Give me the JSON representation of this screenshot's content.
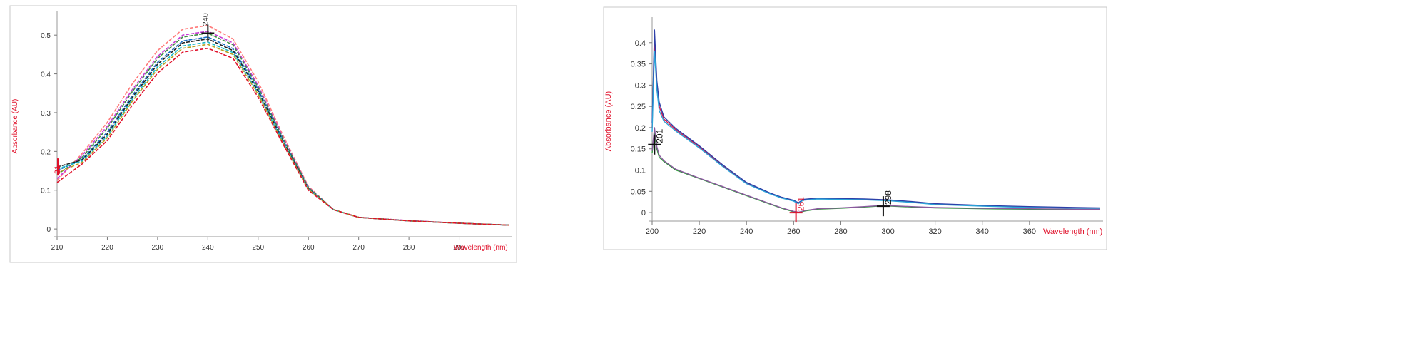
{
  "chart_data": [
    {
      "type": "line",
      "title": "",
      "xlabel": "Wavelength (nm)",
      "ylabel": "Absorbance (AU)",
      "xlim": [
        210,
        300
      ],
      "ylim": [
        -0.02,
        0.55
      ],
      "x_ticks": [
        "210",
        "220",
        "230",
        "240",
        "250",
        "260",
        "270",
        "280",
        "290"
      ],
      "y_ticks": [
        "0",
        "0.1",
        "0.2",
        "0.3",
        "0.4",
        "0.5"
      ],
      "grid": false,
      "peak_label": "240",
      "start_label": "21",
      "series": [
        {
          "color": "#ff7b7b",
          "points": [
            [
              210,
              0.125
            ],
            [
              215,
              0.195
            ],
            [
              220,
              0.275
            ],
            [
              225,
              0.375
            ],
            [
              230,
              0.46
            ],
            [
              235,
              0.515
            ],
            [
              240,
              0.525
            ],
            [
              245,
              0.49
            ],
            [
              250,
              0.38
            ],
            [
              255,
              0.24
            ],
            [
              260,
              0.11
            ],
            [
              265,
              0.05
            ],
            [
              270,
              0.03
            ],
            [
              280,
              0.022
            ],
            [
              290,
              0.015
            ],
            [
              300,
              0.01
            ]
          ]
        },
        {
          "color": "#c73ad6",
          "points": [
            [
              210,
              0.13
            ],
            [
              215,
              0.19
            ],
            [
              220,
              0.265
            ],
            [
              225,
              0.36
            ],
            [
              230,
              0.445
            ],
            [
              235,
              0.5
            ],
            [
              240,
              0.51
            ],
            [
              245,
              0.48
            ],
            [
              250,
              0.37
            ],
            [
              255,
              0.235
            ],
            [
              260,
              0.108
            ],
            [
              265,
              0.05
            ],
            [
              270,
              0.03
            ],
            [
              280,
              0.022
            ],
            [
              290,
              0.015
            ],
            [
              300,
              0.01
            ]
          ]
        },
        {
          "color": "#3e8e41",
          "points": [
            [
              210,
              0.14
            ],
            [
              215,
              0.185
            ],
            [
              220,
              0.26
            ],
            [
              225,
              0.355
            ],
            [
              230,
              0.44
            ],
            [
              235,
              0.495
            ],
            [
              240,
              0.505
            ],
            [
              245,
              0.475
            ],
            [
              250,
              0.365
            ],
            [
              255,
              0.232
            ],
            [
              260,
              0.107
            ],
            [
              265,
              0.05
            ],
            [
              270,
              0.03
            ],
            [
              280,
              0.021
            ],
            [
              290,
              0.015
            ],
            [
              300,
              0.01
            ]
          ]
        },
        {
          "color": "#1a6fc4",
          "points": [
            [
              210,
              0.15
            ],
            [
              215,
              0.18
            ],
            [
              220,
              0.25
            ],
            [
              225,
              0.345
            ],
            [
              230,
              0.43
            ],
            [
              235,
              0.485
            ],
            [
              240,
              0.495
            ],
            [
              245,
              0.465
            ],
            [
              250,
              0.36
            ],
            [
              255,
              0.228
            ],
            [
              260,
              0.105
            ],
            [
              265,
              0.05
            ],
            [
              270,
              0.03
            ],
            [
              280,
              0.021
            ],
            [
              290,
              0.015
            ],
            [
              300,
              0.01
            ]
          ]
        },
        {
          "color": "#222222",
          "points": [
            [
              210,
              0.16
            ],
            [
              215,
              0.178
            ],
            [
              220,
              0.245
            ],
            [
              225,
              0.34
            ],
            [
              230,
              0.425
            ],
            [
              235,
              0.48
            ],
            [
              240,
              0.49
            ],
            [
              245,
              0.46
            ],
            [
              250,
              0.355
            ],
            [
              255,
              0.225
            ],
            [
              260,
              0.104
            ],
            [
              265,
              0.05
            ],
            [
              270,
              0.03
            ],
            [
              280,
              0.021
            ],
            [
              290,
              0.015
            ],
            [
              300,
              0.01
            ]
          ]
        },
        {
          "color": "#19b8c8",
          "points": [
            [
              210,
              0.155
            ],
            [
              215,
              0.175
            ],
            [
              220,
              0.24
            ],
            [
              225,
              0.335
            ],
            [
              230,
              0.418
            ],
            [
              235,
              0.472
            ],
            [
              240,
              0.482
            ],
            [
              245,
              0.455
            ],
            [
              250,
              0.35
            ],
            [
              255,
              0.222
            ],
            [
              260,
              0.103
            ],
            [
              265,
              0.05
            ],
            [
              270,
              0.03
            ],
            [
              280,
              0.021
            ],
            [
              290,
              0.015
            ],
            [
              300,
              0.01
            ]
          ]
        },
        {
          "color": "#b8a020",
          "points": [
            [
              210,
              0.145
            ],
            [
              215,
              0.172
            ],
            [
              220,
              0.235
            ],
            [
              225,
              0.33
            ],
            [
              230,
              0.412
            ],
            [
              235,
              0.466
            ],
            [
              240,
              0.476
            ],
            [
              245,
              0.45
            ],
            [
              250,
              0.347
            ],
            [
              255,
              0.22
            ],
            [
              260,
              0.102
            ],
            [
              265,
              0.05
            ],
            [
              270,
              0.03
            ],
            [
              280,
              0.021
            ],
            [
              290,
              0.015
            ],
            [
              300,
              0.01
            ]
          ]
        },
        {
          "color": "#e0102a",
          "points": [
            [
              210,
              0.12
            ],
            [
              215,
              0.168
            ],
            [
              220,
              0.228
            ],
            [
              225,
              0.32
            ],
            [
              230,
              0.402
            ],
            [
              235,
              0.456
            ],
            [
              240,
              0.466
            ],
            [
              245,
              0.44
            ],
            [
              250,
              0.34
            ],
            [
              255,
              0.218
            ],
            [
              260,
              0.1
            ],
            [
              265,
              0.05
            ],
            [
              270,
              0.03
            ],
            [
              280,
              0.021
            ],
            [
              290,
              0.015
            ],
            [
              300,
              0.01
            ]
          ]
        }
      ]
    },
    {
      "type": "line",
      "title": "",
      "xlabel": "Wavelength (nm)",
      "ylabel": "Absorbance (AU)",
      "xlim": [
        200,
        390
      ],
      "ylim": [
        -0.02,
        0.45
      ],
      "x_ticks": [
        "200",
        "220",
        "240",
        "260",
        "280",
        "300",
        "320",
        "340",
        "360"
      ],
      "y_ticks": [
        "0",
        "0.05",
        "0.1",
        "0.15",
        "0.2",
        "0.25",
        "0.3",
        "0.35",
        "0.4"
      ],
      "grid": false,
      "markers": [
        {
          "x": 201,
          "y": 0.16,
          "label": "201",
          "color": "#111111"
        },
        {
          "x": 261,
          "y": 0.0,
          "label": "261",
          "color": "#e0102a"
        },
        {
          "x": 298,
          "y": 0.015,
          "label": "298",
          "color": "#111111"
        }
      ],
      "series": [
        {
          "color": "#d81b4c",
          "points": [
            [
              200,
              0.2
            ],
            [
              201,
              0.4
            ],
            [
              202,
              0.3
            ],
            [
              203,
              0.25
            ],
            [
              205,
              0.22
            ],
            [
              210,
              0.195
            ],
            [
              220,
              0.155
            ],
            [
              230,
              0.11
            ],
            [
              240,
              0.07
            ],
            [
              250,
              0.045
            ],
            [
              255,
              0.035
            ],
            [
              260,
              0.028
            ],
            [
              262,
              0.022
            ],
            [
              264,
              0.03
            ],
            [
              270,
              0.033
            ],
            [
              280,
              0.032
            ],
            [
              290,
              0.031
            ],
            [
              300,
              0.029
            ],
            [
              310,
              0.025
            ],
            [
              320,
              0.02
            ],
            [
              340,
              0.016
            ],
            [
              360,
              0.013
            ],
            [
              380,
              0.011
            ],
            [
              390,
              0.01
            ]
          ]
        },
        {
          "color": "#2d3fa8",
          "points": [
            [
              200,
              0.21
            ],
            [
              201,
              0.43
            ],
            [
              202,
              0.31
            ],
            [
              203,
              0.26
            ],
            [
              205,
              0.225
            ],
            [
              210,
              0.198
            ],
            [
              220,
              0.157
            ],
            [
              230,
              0.112
            ],
            [
              240,
              0.071
            ],
            [
              250,
              0.046
            ],
            [
              255,
              0.036
            ],
            [
              260,
              0.029
            ],
            [
              262,
              0.023
            ],
            [
              264,
              0.031
            ],
            [
              270,
              0.034
            ],
            [
              280,
              0.033
            ],
            [
              290,
              0.032
            ],
            [
              300,
              0.03
            ],
            [
              310,
              0.026
            ],
            [
              320,
              0.021
            ],
            [
              340,
              0.017
            ],
            [
              360,
              0.014
            ],
            [
              380,
              0.012
            ],
            [
              390,
              0.011
            ]
          ]
        },
        {
          "color": "#2aa3d8",
          "points": [
            [
              200,
              0.19
            ],
            [
              201,
              0.38
            ],
            [
              202,
              0.29
            ],
            [
              203,
              0.24
            ],
            [
              205,
              0.215
            ],
            [
              210,
              0.192
            ],
            [
              220,
              0.152
            ],
            [
              230,
              0.108
            ],
            [
              240,
              0.068
            ],
            [
              250,
              0.044
            ],
            [
              255,
              0.034
            ],
            [
              260,
              0.027
            ],
            [
              262,
              0.021
            ],
            [
              264,
              0.029
            ],
            [
              270,
              0.032
            ],
            [
              280,
              0.031
            ],
            [
              290,
              0.03
            ],
            [
              300,
              0.028
            ],
            [
              310,
              0.024
            ],
            [
              320,
              0.019
            ],
            [
              340,
              0.015
            ],
            [
              360,
              0.012
            ],
            [
              380,
              0.01
            ],
            [
              390,
              0.009
            ]
          ]
        },
        {
          "color": "#2e9a3a",
          "points": [
            [
              200,
              0.14
            ],
            [
              201,
              0.19
            ],
            [
              202,
              0.15
            ],
            [
              203,
              0.13
            ],
            [
              205,
              0.12
            ],
            [
              210,
              0.1
            ],
            [
              220,
              0.08
            ],
            [
              230,
              0.06
            ],
            [
              240,
              0.04
            ],
            [
              250,
              0.02
            ],
            [
              255,
              0.01
            ],
            [
              260,
              0.002
            ],
            [
              262,
              0.0
            ],
            [
              265,
              0.004
            ],
            [
              270,
              0.008
            ],
            [
              280,
              0.01
            ],
            [
              290,
              0.013
            ],
            [
              298,
              0.016
            ],
            [
              310,
              0.013
            ],
            [
              320,
              0.011
            ],
            [
              340,
              0.009
            ],
            [
              360,
              0.008
            ],
            [
              380,
              0.007
            ],
            [
              390,
              0.007
            ]
          ]
        },
        {
          "color": "#8a5a9e",
          "points": [
            [
              200,
              0.145
            ],
            [
              201,
              0.2
            ],
            [
              202,
              0.155
            ],
            [
              203,
              0.135
            ],
            [
              205,
              0.122
            ],
            [
              210,
              0.102
            ],
            [
              220,
              0.081
            ],
            [
              230,
              0.061
            ],
            [
              240,
              0.041
            ],
            [
              250,
              0.021
            ],
            [
              255,
              0.011
            ],
            [
              260,
              0.003
            ],
            [
              262,
              0.001
            ],
            [
              265,
              0.005
            ],
            [
              270,
              0.009
            ],
            [
              280,
              0.011
            ],
            [
              290,
              0.014
            ],
            [
              298,
              0.017
            ],
            [
              310,
              0.014
            ],
            [
              320,
              0.012
            ],
            [
              340,
              0.01
            ],
            [
              360,
              0.009
            ],
            [
              380,
              0.008
            ],
            [
              390,
              0.008
            ]
          ]
        }
      ]
    }
  ]
}
